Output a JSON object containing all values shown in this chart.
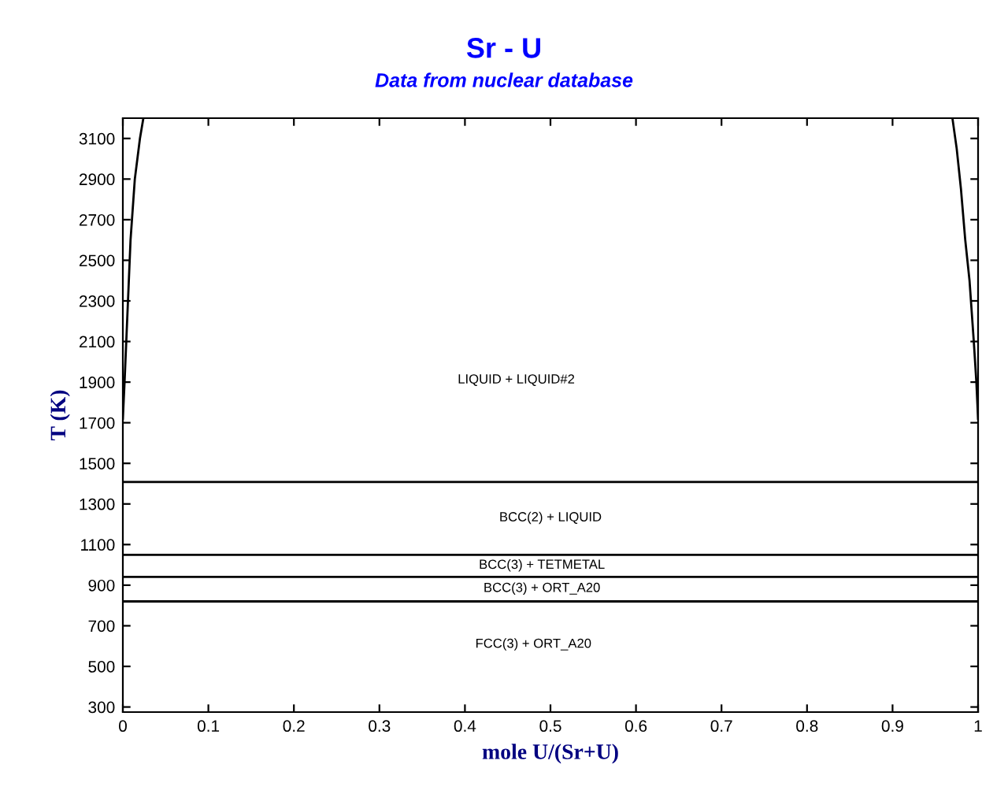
{
  "chart_data": {
    "type": "line",
    "title": "Sr - U",
    "subtitle": "Data from nuclear database",
    "xlabel": "mole U/(Sr+U)",
    "ylabel": "T (K)",
    "xlim": [
      0,
      1
    ],
    "ylim": [
      275,
      3200
    ],
    "xticks": [
      0,
      0.1,
      0.2,
      0.3,
      0.4,
      0.5,
      0.6,
      0.7,
      0.8,
      0.9,
      1
    ],
    "yticks": [
      300,
      500,
      700,
      900,
      1100,
      1300,
      1500,
      1700,
      1900,
      2100,
      2300,
      2500,
      2700,
      2900,
      3100
    ],
    "grid": false,
    "marker": "none",
    "line_style": "solid",
    "series": [
      {
        "color": "#000000",
        "x": [
          0.0,
          0.002,
          0.005,
          0.009,
          0.014,
          0.02,
          0.024
        ],
        "values": [
          1720,
          1900,
          2200,
          2600,
          2900,
          3100,
          3200
        ]
      },
      {
        "color": "#000000",
        "x": [
          0.97,
          0.975,
          0.98,
          0.985,
          0.99,
          0.995,
          0.998,
          1.0
        ],
        "values": [
          3200,
          3050,
          2850,
          2600,
          2400,
          2100,
          1900,
          1720
        ]
      },
      {
        "color": "#000000",
        "x": [
          0,
          1
        ],
        "values": [
          1408,
          1408
        ]
      },
      {
        "color": "#000000",
        "x": [
          0,
          1
        ],
        "values": [
          1049,
          1049
        ]
      },
      {
        "color": "#000000",
        "x": [
          0,
          1
        ],
        "values": [
          941,
          941
        ]
      },
      {
        "color": "#000000",
        "x": [
          0,
          1
        ],
        "values": [
          820,
          820
        ]
      }
    ],
    "annotations": [
      "LIQUID + LIQUID#2",
      "BCC(2) + LIQUID",
      "BCC(3) + TETMETAL",
      "BCC(3) + ORT_A20",
      "FCC(3) + ORT_A20"
    ]
  }
}
